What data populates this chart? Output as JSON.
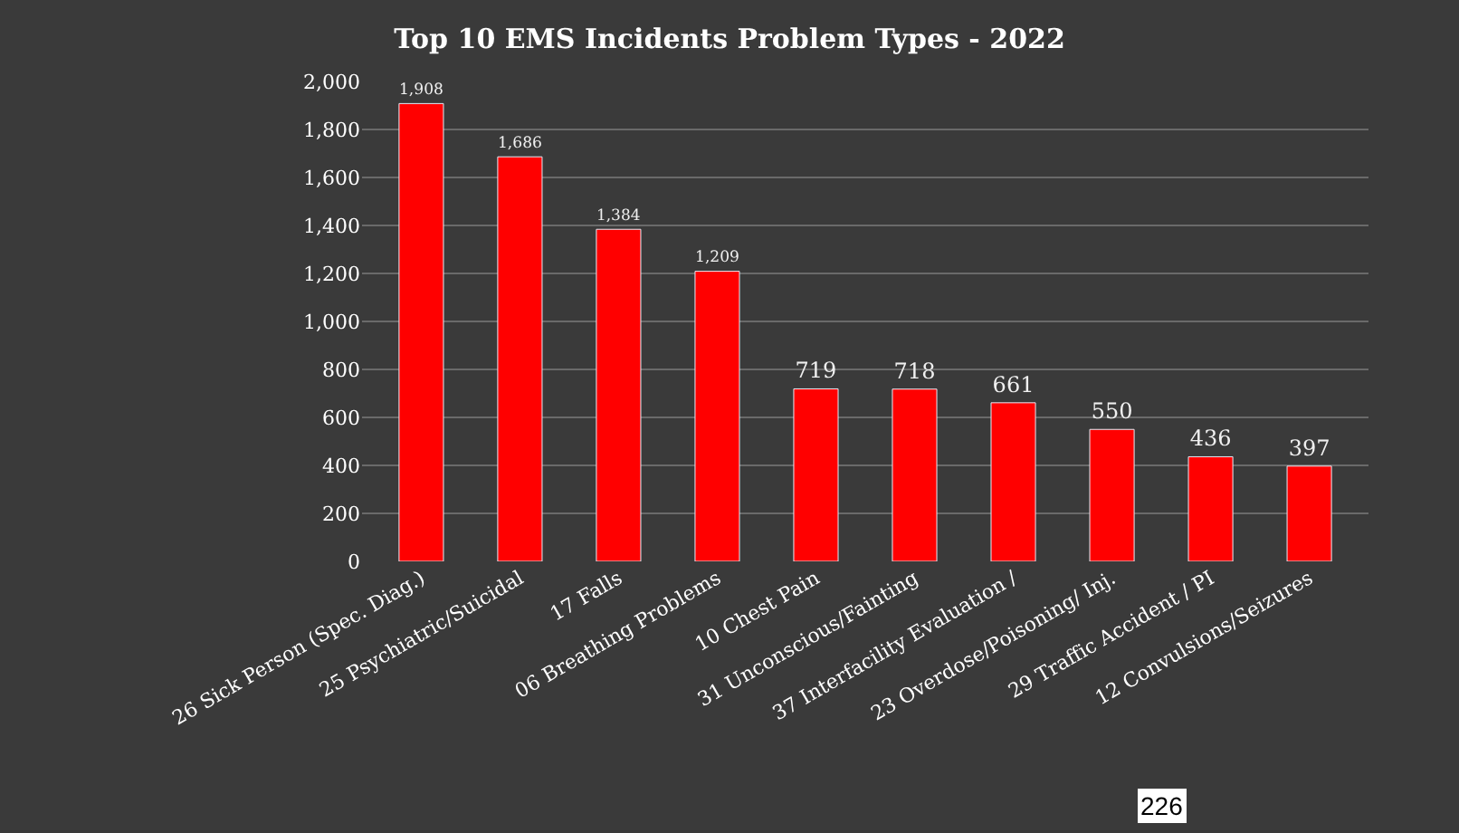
{
  "chart_data": {
    "type": "bar",
    "title": "Top 10 EMS Incidents Problem Types - 2022",
    "categories": [
      "26 Sick Person (Spec. Diag.)",
      "25 Psychiatric/Suicidal",
      "17 Falls",
      "06 Breathing Problems",
      "10 Chest Pain",
      "31 Unconscious/Fainting",
      "37 Interfacility Evaluation /",
      "23 Overdose/Poisoning/ Inj.",
      "29 Traffic Accident / PI",
      "12 Convulsions/Seizures"
    ],
    "values": [
      1908,
      1686,
      1384,
      1209,
      719,
      718,
      661,
      550,
      436,
      397
    ],
    "color": "#ff0000",
    "ylim": [
      0,
      2000
    ],
    "yticks": [
      {
        "value": 0,
        "label": "0"
      },
      {
        "value": 200,
        "label": "200"
      },
      {
        "value": 400,
        "label": "400"
      },
      {
        "value": 600,
        "label": "600"
      },
      {
        "value": 800,
        "label": "800"
      },
      {
        "value": 1000,
        "label": "1,000"
      },
      {
        "value": 1200,
        "label": "1,200"
      },
      {
        "value": 1400,
        "label": "1,400"
      },
      {
        "value": 1600,
        "label": "1,600"
      },
      {
        "value": 1800,
        "label": "1,800"
      },
      {
        "value": 2000,
        "label": "2,000"
      }
    ],
    "value_labels": [
      "1,908",
      "1,686",
      "1,384",
      "1,209",
      "719",
      "718",
      "661",
      "550",
      "436",
      "397"
    ],
    "grid": "y",
    "legend": false,
    "annotations": [
      "226"
    ]
  }
}
